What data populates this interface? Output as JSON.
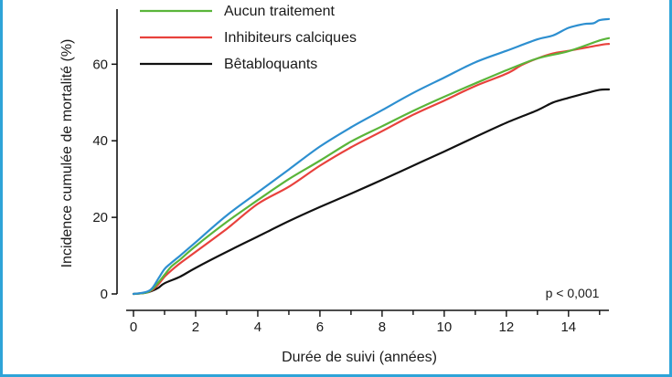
{
  "chart_data": {
    "type": "line",
    "title": "",
    "xlabel": "Durée de suivi (années)",
    "ylabel": "Incidence cumulée de mortalité (%)",
    "xlim": [
      0,
      15.3
    ],
    "ylim": [
      0,
      72
    ],
    "xticks": [
      0,
      2,
      4,
      6,
      8,
      10,
      12,
      14
    ],
    "yticks": [
      0,
      20,
      40,
      60
    ],
    "annotation": "p < 0,001",
    "legend_position": "top-left",
    "grid": false,
    "series": [
      {
        "name": "Aucun traitement",
        "color": "#5ab53a",
        "x": [
          0,
          0.4,
          0.6,
          0.8,
          1,
          1.2,
          1.5,
          2,
          3,
          4,
          5,
          6,
          7,
          8,
          9,
          10,
          11,
          12,
          13,
          14,
          15,
          15.3
        ],
        "y": [
          0,
          0.3,
          1.2,
          3,
          5,
          7,
          9,
          12.5,
          18.8,
          24.5,
          30,
          34.8,
          39.8,
          43.8,
          47.8,
          51.5,
          55,
          58.4,
          61.5,
          63.4,
          66.2,
          66.8
        ]
      },
      {
        "name": "Inhibiteurs calciques",
        "color": "#e8413c",
        "x": [
          0,
          0.4,
          0.6,
          0.8,
          1,
          1.2,
          1.5,
          2,
          3,
          4,
          5,
          6,
          7,
          8,
          9,
          10,
          11,
          12,
          12.5,
          13,
          13.5,
          14,
          15,
          15.3
        ],
        "y": [
          0,
          0.3,
          1,
          2.5,
          4.5,
          6,
          8,
          11,
          17,
          23.5,
          28,
          33.5,
          38.3,
          42.5,
          46.8,
          50.5,
          54.3,
          57.5,
          59.8,
          61.5,
          62.8,
          63.5,
          65,
          65.3
        ]
      },
      {
        "name": "Bêtabloquants",
        "color": "#111111",
        "x": [
          0,
          0.4,
          0.6,
          0.8,
          1,
          1.5,
          2,
          3,
          4,
          5,
          6,
          7,
          8,
          9,
          10,
          11,
          12,
          13,
          13.5,
          14,
          14.5,
          15,
          15.3
        ],
        "y": [
          0,
          0.3,
          0.8,
          1.6,
          2.8,
          4.5,
          6.8,
          11,
          15,
          19,
          22.7,
          26.2,
          29.8,
          33.5,
          37.2,
          41,
          44.7,
          48,
          50,
          51.2,
          52.3,
          53.3,
          53.4
        ]
      },
      {
        "name": "",
        "color": "#2d8fd0",
        "x": [
          0,
          0.4,
          0.6,
          0.8,
          1,
          1.2,
          1.5,
          2,
          3,
          4,
          5,
          6,
          7,
          8,
          9,
          10,
          11,
          12,
          13,
          13.5,
          14,
          14.5,
          14.8,
          15,
          15.3
        ],
        "y": [
          0,
          0.5,
          1.5,
          4,
          6.5,
          8,
          10,
          13.5,
          20.5,
          26.5,
          32.5,
          38.5,
          43.5,
          48,
          52.5,
          56.5,
          60.5,
          63.5,
          66.5,
          67.5,
          69.5,
          70.5,
          70.7,
          71.5,
          71.8
        ]
      }
    ]
  }
}
